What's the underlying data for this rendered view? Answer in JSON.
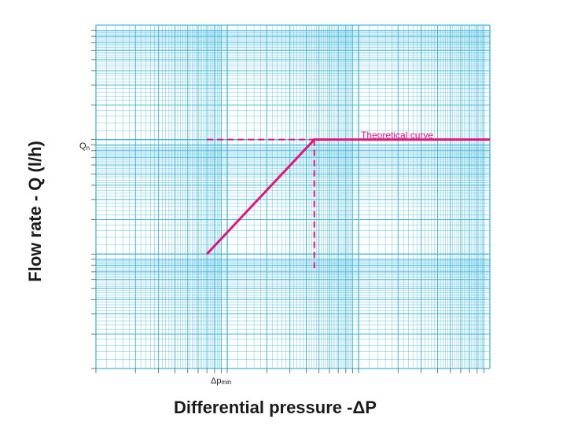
{
  "chart_data": {
    "type": "line",
    "title": "",
    "xlabel": "Differential pressure -ΔP",
    "ylabel": "Flow rate - Q (l/h)",
    "x_scale": "log",
    "y_scale": "log",
    "grid": true,
    "x_tick_label": {
      "main": "Δp",
      "sub": "min"
    },
    "y_tick_label": {
      "main": "Q",
      "sub": "n"
    },
    "series": [
      {
        "name": "Theoretical curve",
        "style": "solid",
        "points": [
          [
            0.07,
            0.1
          ],
          [
            0.46,
            1.0
          ],
          [
            10,
            1.0
          ]
        ]
      }
    ],
    "reference_lines": [
      {
        "style": "dashed",
        "points": [
          [
            0.07,
            1.0
          ],
          [
            0.46,
            1.0
          ]
        ]
      },
      {
        "style": "dashed",
        "points": [
          [
            0.46,
            1.0
          ],
          [
            0.46,
            0.1
          ]
        ]
      }
    ],
    "colors": {
      "grid": "#40b8dc",
      "curve": "#e0157f",
      "text": "#1a1a1a"
    }
  }
}
